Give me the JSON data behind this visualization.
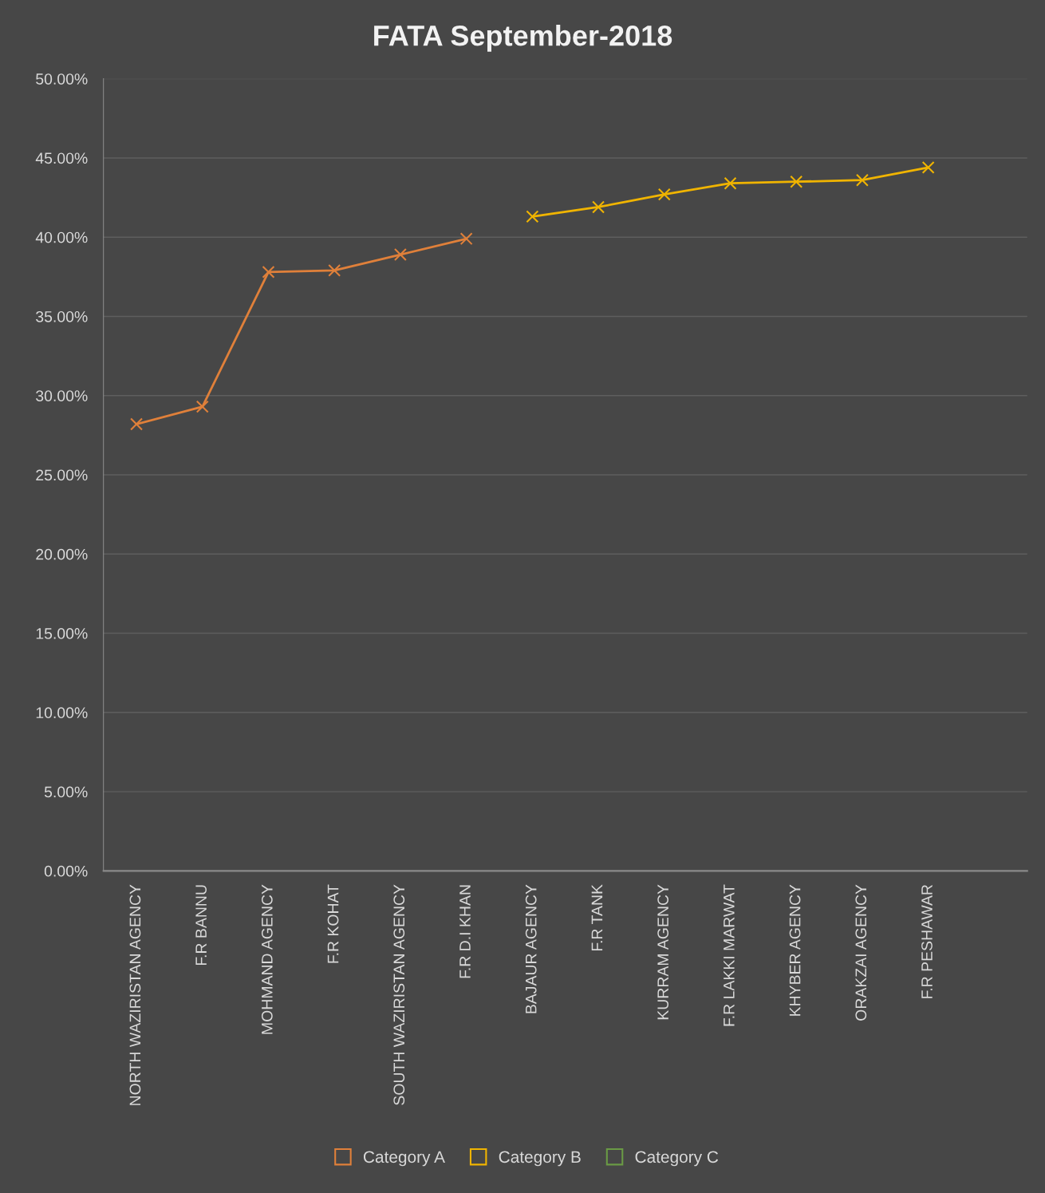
{
  "chart_data": {
    "type": "line",
    "title": "FATA September-2018",
    "categories": [
      "NORTH WAZIRISTAN AGENCY",
      "F.R BANNU",
      "MOHMAND AGENCY",
      "F.R KOHAT",
      "SOUTH WAZIRISTAN AGENCY",
      "F.R D.I KHAN",
      "BAJAUR AGENCY",
      "F.R TANK",
      "KURRAM AGENCY",
      "F.R LAKKI MARWAT",
      "KHYBER AGENCY",
      "ORAKZAI AGENCY",
      "F.R PESHAWAR",
      null
    ],
    "series": [
      {
        "name": "Category A",
        "color": "#e0803a",
        "values": [
          28.2,
          29.3,
          37.8,
          37.9,
          38.9,
          39.9,
          null,
          null,
          null,
          null,
          null,
          null,
          null,
          null
        ]
      },
      {
        "name": "Category B",
        "color": "#f0b400",
        "values": [
          null,
          null,
          null,
          null,
          null,
          null,
          41.3,
          41.9,
          42.7,
          43.4,
          43.5,
          43.6,
          44.4,
          null
        ]
      },
      {
        "name": "Category C",
        "color": "#6a9a45",
        "values": [
          null,
          null,
          null,
          null,
          null,
          null,
          null,
          null,
          null,
          null,
          null,
          null,
          null,
          null
        ]
      }
    ],
    "ylim": [
      0,
      50
    ],
    "yticks": [
      {
        "value": 0,
        "label": "0.00%"
      },
      {
        "value": 5,
        "label": "5.00%"
      },
      {
        "value": 10,
        "label": "10.00%"
      },
      {
        "value": 15,
        "label": "15.00%"
      },
      {
        "value": 20,
        "label": "20.00%"
      },
      {
        "value": 25,
        "label": "25.00%"
      },
      {
        "value": 30,
        "label": "30.00%"
      },
      {
        "value": 35,
        "label": "35.00%"
      },
      {
        "value": 40,
        "label": "40.00%"
      },
      {
        "value": 45,
        "label": "45.00%"
      },
      {
        "value": 50,
        "label": "50.00%"
      }
    ],
    "grid": "y",
    "legend": "bottom",
    "marker": "cross",
    "line_style": "solid"
  }
}
